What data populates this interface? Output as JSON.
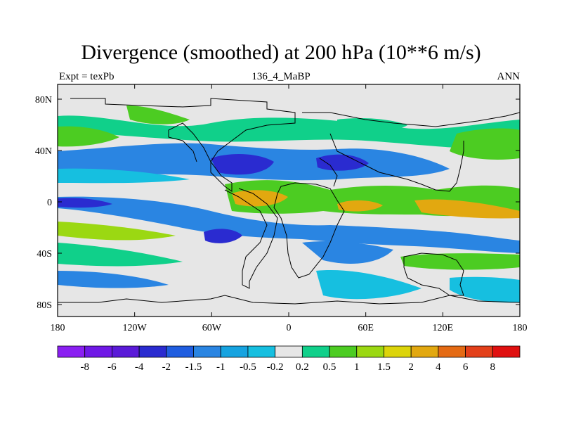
{
  "title": "Divergence (smoothed) at 200 hPa (10**6 m/s)",
  "left_label": "Expt = texPb",
  "center_label": "136_4_MaBP",
  "right_label": "ANN",
  "x_ticks": [
    "180",
    "120W",
    "60W",
    "0",
    "60E",
    "120E",
    "180"
  ],
  "y_ticks": [
    "80N",
    "40N",
    "0",
    "40S",
    "80S"
  ],
  "colorbar": {
    "labels": [
      "-8",
      "-6",
      "-4",
      "-2",
      "-1.5",
      "-1",
      "-0.5",
      "-0.2",
      "0.2",
      "0.5",
      "1",
      "1.5",
      "2",
      "4",
      "6",
      "8"
    ],
    "colors": [
      "#8a1ff2",
      "#6f18e6",
      "#5a1ad8",
      "#2a2bd0",
      "#1f5de0",
      "#2a85e2",
      "#16a3e0",
      "#16bfe0",
      "#e6e6e6",
      "#10d08a",
      "#4ccc22",
      "#9bd812",
      "#dcd40a",
      "#e2a810",
      "#e46a14",
      "#e3401a",
      "#e01010"
    ]
  },
  "colors": {
    "land_background": "#e6e6e6",
    "deep_blue": "#2a2bd0",
    "mid_blue": "#2a85e2",
    "light_blue": "#16bfe0",
    "teal": "#10d08a",
    "green": "#4ccc22",
    "yellow_green": "#9bd812",
    "orange": "#e2a810"
  }
}
